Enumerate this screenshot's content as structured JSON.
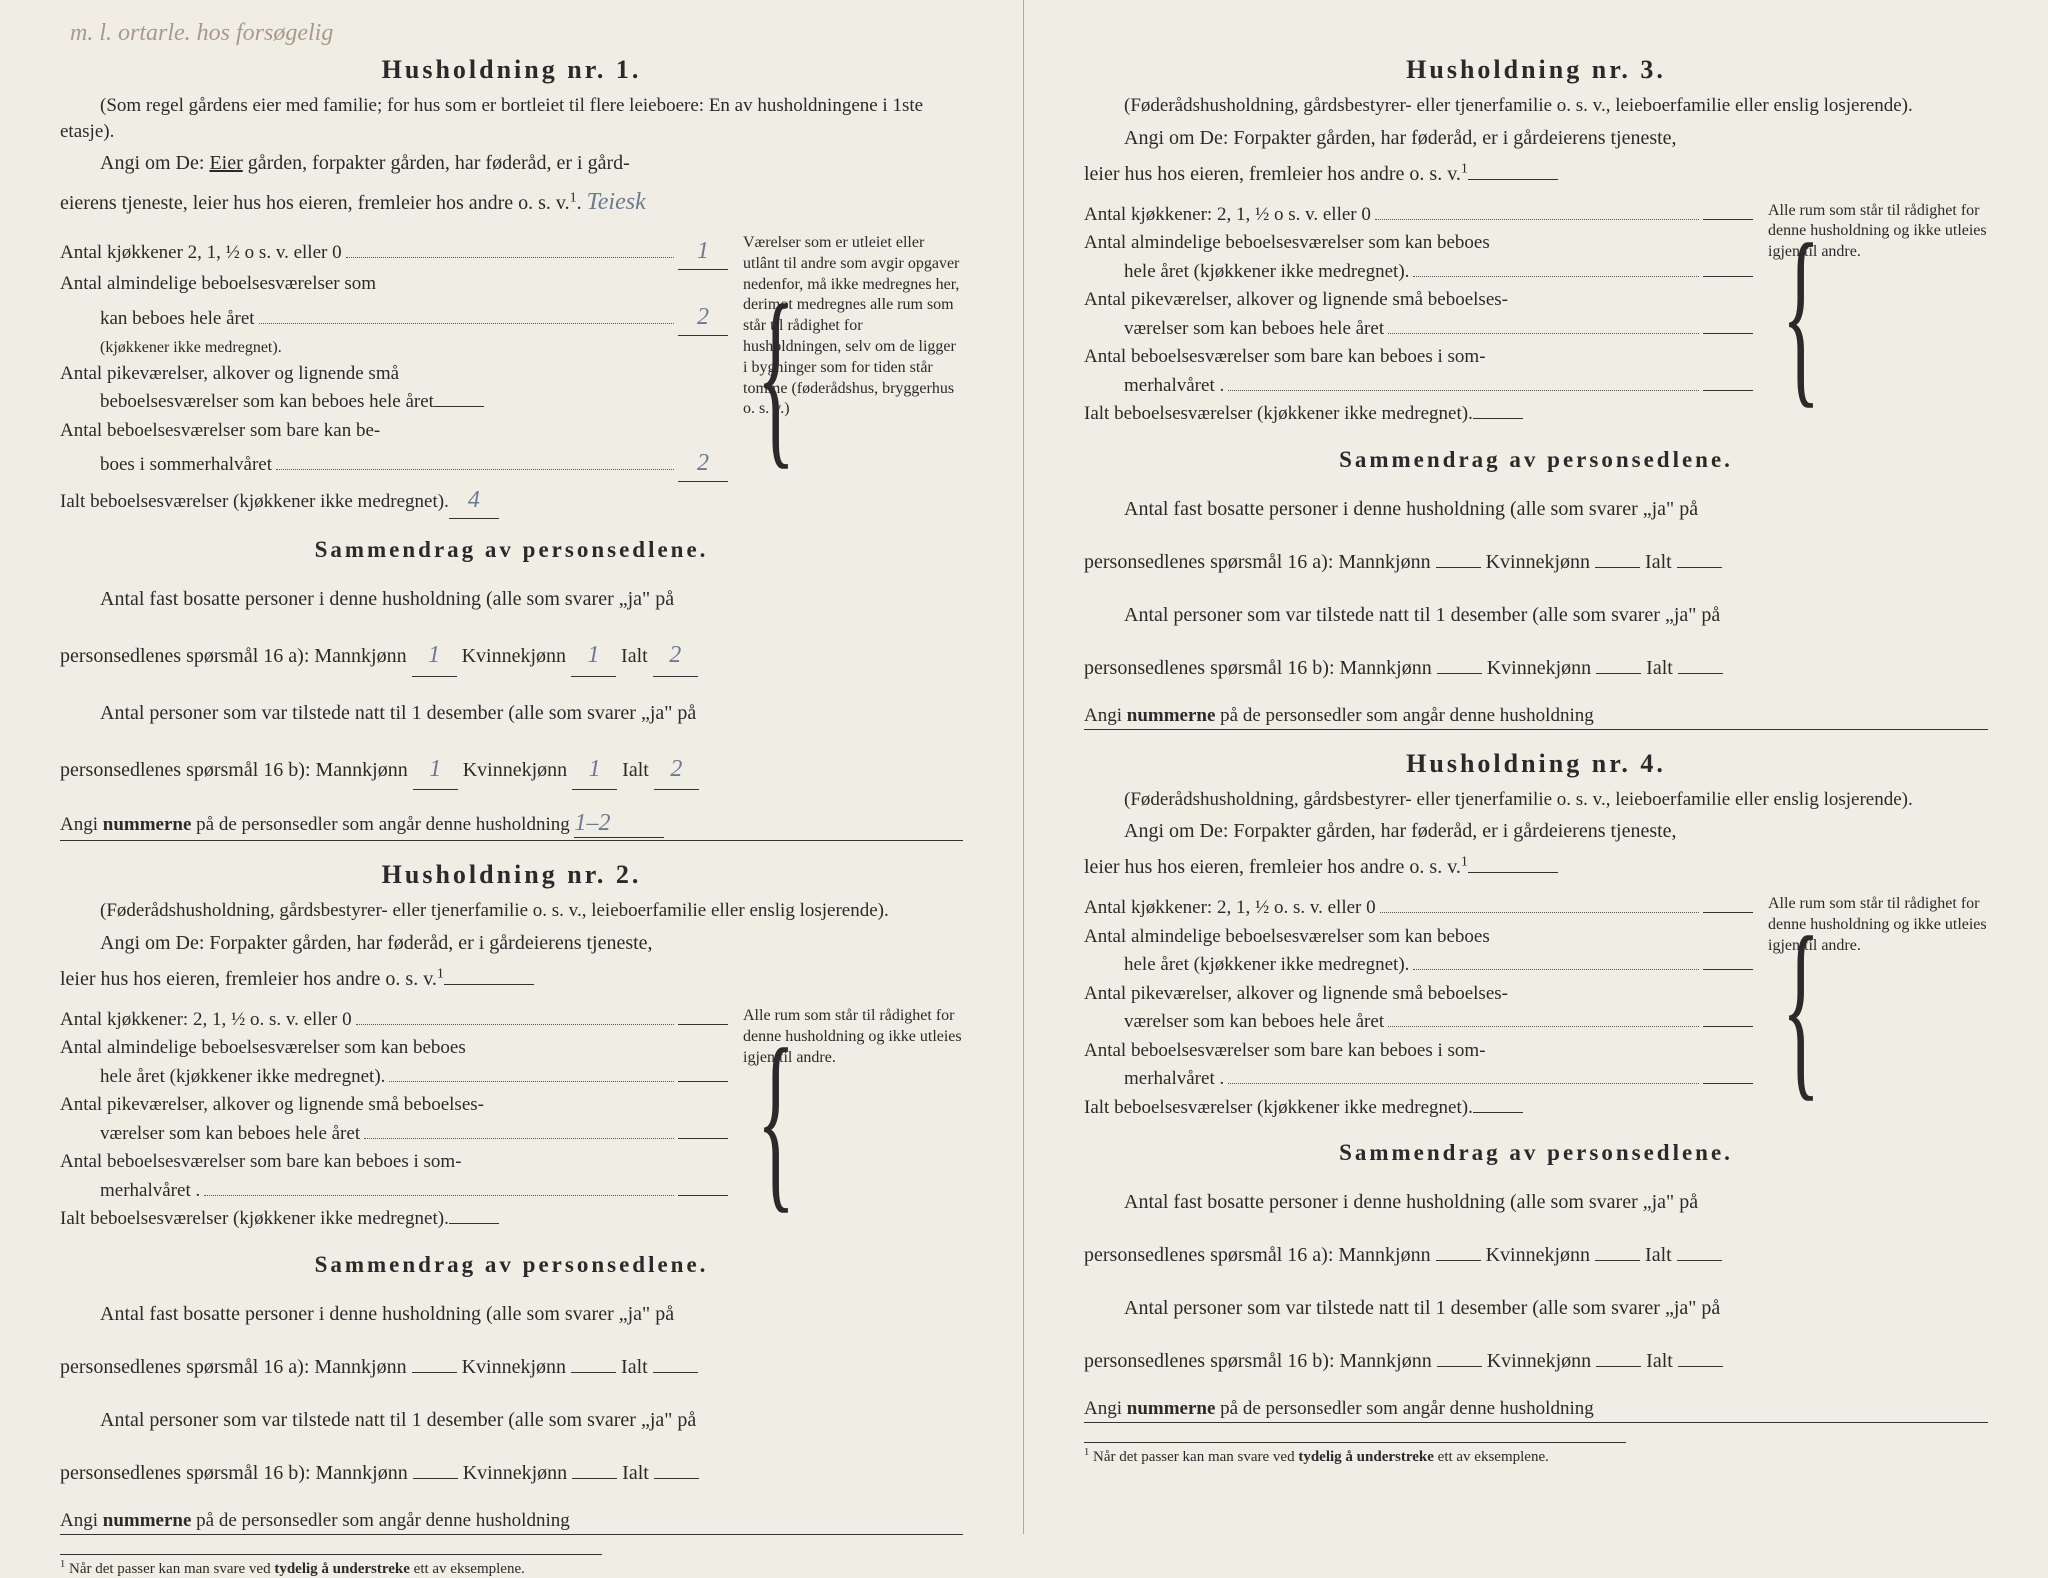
{
  "handwritten_top": "m. l. ortarle. hos forsøgelig",
  "households": [
    {
      "title": "Husholdning nr. 1.",
      "subtitle": "(Som regel gårdens eier med familie; for hus som er bortleiet til flere leieboere: En av husholdningene i 1ste etasje).",
      "angi_prefix": "Angi om De: ",
      "angi_underlined": "Eier",
      "angi_body": " gården, forpakter gården, har føderåd, er i gård-",
      "angi_cont": "eierens tjeneste, leier hus hos eieren, fremleier hos andre o. s. v.",
      "angi_sup": "1",
      "angi_trail": ".",
      "handwritten_answer": "Teiesk",
      "questions": [
        {
          "text": "Antal kjøkkener 2, 1, ½ o s. v. eller 0",
          "dots": ".",
          "value": "1"
        },
        {
          "text": "Antal almindelige beboelsesværelser som",
          "cont": "kan beboes hele året",
          "note": "(kjøkkener ikke medregnet).",
          "value": "2"
        },
        {
          "text": "Antal pikeværelser, alkover og lignende små",
          "cont": "beboelsesværelser som kan beboes hele året",
          "value": ""
        },
        {
          "text": "Antal beboelsesværelser som bare kan be-",
          "cont": "boes i sommerhalvåret",
          "value": "2"
        },
        {
          "text": "Ialt beboelsesværelser (kjøkkener ikke medregnet).",
          "value": "4"
        }
      ],
      "side_note": "Værelser som er utleiet eller utlânt til andre som avgir opgaver nedenfor, må ikke medregnes her, derimot medregnes alle rum som står til rådighet for husholdningen, selv om de ligger i bygninger som for tiden står tomme (føderådshus, bryggerhus o. s. v.)",
      "summary_title": "Sammendrag av personsedlene.",
      "summary1a": "Antal fast bosatte personer i denne husholdning (alle som svarer „ja\" på",
      "summary1b": "personsedlenes spørsmål 16 a): Mannkjønn",
      "mann1": "1",
      "kvinne_label": "Kvinnekjønn",
      "kvinne1": "1",
      "ialt_label": "Ialt",
      "ialt1": "2",
      "summary2a": "Antal personer som var tilstede natt til 1 desember (alle som svarer „ja\" på",
      "summary2b": "personsedlenes spørsmål 16 b): Mannkjønn",
      "mann2": "1",
      "kvinne2": "1",
      "ialt2": "2",
      "nummerne_prefix": "Angi ",
      "nummerne_bold": "nummerne",
      "nummerne_rest": " på de personsedler som angår denne husholdning",
      "nummerne_value": "1–2"
    },
    {
      "title": "Husholdning nr. 2.",
      "subtitle": "(Føderådshusholdning, gårdsbestyrer- eller tjenerfamilie o. s. v., leieboerfamilie eller enslig losjerende).",
      "angi_prefix": "Angi om De: Forpakter gården, har føderåd, er i gårdeierens tjeneste,",
      "angi_cont": "leier hus hos eieren, fremleier hos andre o. s. v.",
      "angi_sup": "1",
      "questions": [
        {
          "text": "Antal kjøkkener: 2, 1, ½ o. s. v. eller 0",
          "value": ""
        },
        {
          "text": "Antal almindelige beboelsesværelser som kan beboes",
          "cont": "hele året (kjøkkener ikke medregnet).",
          "value": ""
        },
        {
          "text": "Antal pikeværelser, alkover og lignende små beboelses-",
          "cont": "værelser som kan beboes hele året",
          "value": ""
        },
        {
          "text": "Antal beboelsesværelser som bare kan beboes i som-",
          "cont": "merhalvåret .",
          "value": ""
        },
        {
          "text": "Ialt beboelsesværelser (kjøkkener ikke medregnet).",
          "value": ""
        }
      ],
      "side_note": "Alle rum som står til rådighet for denne husholdning og ikke utleies igjen til andre.",
      "summary_title": "Sammendrag av personsedlene.",
      "summary1a": "Antal fast bosatte personer i denne husholdning (alle som svarer „ja\" på",
      "summary1b": "personsedlenes spørsmål 16 a): Mannkjønn",
      "kvinne_label": "Kvinnekjønn",
      "ialt_label": "Ialt",
      "summary2a": "Antal personer som var tilstede natt til 1 desember (alle som svarer „ja\" på",
      "summary2b": "personsedlenes spørsmål 16 b): Mannkjønn",
      "nummerne_prefix": "Angi ",
      "nummerne_bold": "nummerne",
      "nummerne_rest": " på de personsedler som angår denne husholdning"
    },
    {
      "title": "Husholdning nr. 3.",
      "subtitle": "(Føderådshusholdning, gårdsbestyrer- eller tjenerfamilie o. s. v., leieboerfamilie eller enslig losjerende).",
      "angi_prefix": "Angi om De: Forpakter gården, har føderåd, er i gårdeierens tjeneste,",
      "angi_cont": "leier hus hos eieren, fremleier hos andre o. s. v.",
      "angi_sup": "1",
      "questions": [
        {
          "text": "Antal kjøkkener: 2, 1, ½ o s. v. eller 0",
          "value": ""
        },
        {
          "text": "Antal almindelige beboelsesværelser som kan beboes",
          "cont": "hele året (kjøkkener ikke medregnet).",
          "value": ""
        },
        {
          "text": "Antal pikeværelser, alkover og lignende små beboelses-",
          "cont": "værelser som kan beboes hele året",
          "value": ""
        },
        {
          "text": "Antal beboelsesværelser som bare kan beboes i som-",
          "cont": "merhalvåret .",
          "value": ""
        },
        {
          "text": "Ialt beboelsesværelser (kjøkkener ikke medregnet).",
          "value": ""
        }
      ],
      "side_note": "Alle rum som står til rådighet for denne husholdning og ikke utleies igjen til andre.",
      "summary_title": "Sammendrag av personsedlene.",
      "summary1a": "Antal fast bosatte personer i denne husholdning (alle som svarer „ja\" på",
      "summary1b": "personsedlenes spørsmål 16 a): Mannkjønn",
      "kvinne_label": "Kvinnekjønn",
      "ialt_label": "Ialt",
      "summary2a": "Antal personer som var tilstede natt til 1 desember (alle som svarer „ja\" på",
      "summary2b": "personsedlenes spørsmål 16 b): Mannkjønn",
      "nummerne_prefix": "Angi ",
      "nummerne_bold": "nummerne",
      "nummerne_rest": " på de personsedler som angår denne husholdning"
    },
    {
      "title": "Husholdning nr. 4.",
      "subtitle": "(Føderådshusholdning, gårdsbestyrer- eller tjenerfamilie o. s. v., leieboerfamilie eller enslig losjerende).",
      "angi_prefix": "Angi om De: Forpakter gården, har føderåd, er i gårdeierens tjeneste,",
      "angi_cont": "leier hus hos eieren, fremleier hos andre o. s. v.",
      "angi_sup": "1",
      "questions": [
        {
          "text": "Antal kjøkkener: 2, 1, ½ o. s. v. eller 0",
          "value": ""
        },
        {
          "text": "Antal almindelige beboelsesværelser som kan beboes",
          "cont": "hele året (kjøkkener ikke medregnet).",
          "value": ""
        },
        {
          "text": "Antal pikeværelser, alkover og lignende små beboelses-",
          "cont": "værelser som kan beboes hele året",
          "value": ""
        },
        {
          "text": "Antal beboelsesværelser som bare kan beboes i som-",
          "cont": "merhalvåret .",
          "value": ""
        },
        {
          "text": "Ialt beboelsesværelser (kjøkkener ikke medregnet).",
          "value": ""
        }
      ],
      "side_note": "Alle rum som står til rådighet for denne husholdning og ikke utleies igjen til andre.",
      "summary_title": "Sammendrag av personsedlene.",
      "summary1a": "Antal fast bosatte personer i denne husholdning (alle som svarer „ja\" på",
      "summary1b": "personsedlenes spørsmål 16 a): Mannkjønn",
      "kvinne_label": "Kvinnekjønn",
      "ialt_label": "Ialt",
      "summary2a": "Antal personer som var tilstede natt til 1 desember (alle som svarer „ja\" på",
      "summary2b": "personsedlenes spørsmål 16 b): Mannkjønn",
      "nummerne_prefix": "Angi ",
      "nummerne_bold": "nummerne",
      "nummerne_rest": " på de personsedler som angår denne husholdning"
    }
  ],
  "footnote_marker": "1",
  "footnote_text": "Når det passer kan man svare ved ",
  "footnote_bold": "tydelig å understreke",
  "footnote_rest": " ett av eksemplene.",
  "colors": {
    "background": "#f0ede4",
    "text": "#2a2a2a",
    "handwritten": "#6b7a8f",
    "faded_handwritten": "#a8998a"
  },
  "typography": {
    "title_size": 26,
    "body_size": 20,
    "subtitle_size": 19,
    "sidenote_size": 16,
    "footnote_size": 15
  }
}
